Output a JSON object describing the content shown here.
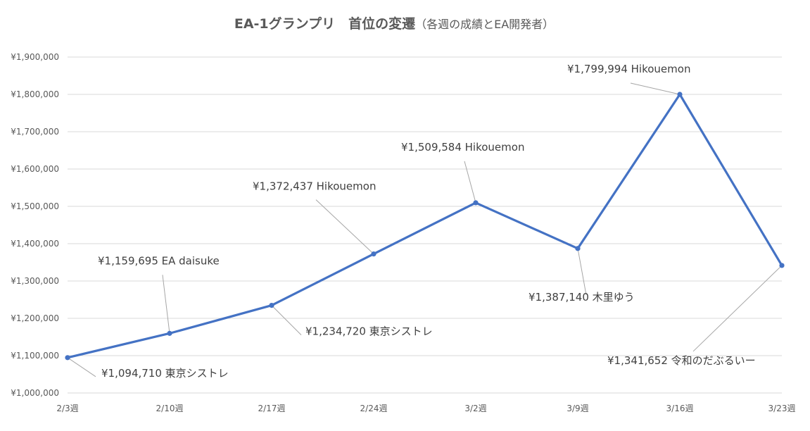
{
  "chart_data": {
    "type": "line",
    "title": "EA-1グランプリ　首位の変遷",
    "subtitle": "（各週の成績とEA開発者）",
    "categories": [
      "2/3週",
      "2/10週",
      "2/17週",
      "2/24週",
      "3/2週",
      "3/9週",
      "3/16週",
      "3/23週"
    ],
    "series": [
      {
        "values": [
          1094710,
          1159695,
          1234720,
          1372437,
          1509584,
          1387140,
          1799994,
          1341652
        ]
      }
    ],
    "data_labels": [
      {
        "value": "¥1,094,710",
        "name": "東京シストレ"
      },
      {
        "value": "¥1,159,695",
        "name": "EA daisuke"
      },
      {
        "value": "¥1,234,720",
        "name": "東京シストレ"
      },
      {
        "value": "¥1,372,437",
        "name": "Hikouemon"
      },
      {
        "value": "¥1,509,584",
        "name": "Hikouemon"
      },
      {
        "value": "¥1,387,140",
        "name": "木里ゆう"
      },
      {
        "value": "¥1,799,994",
        "name": "Hikouemon"
      },
      {
        "value": "¥1,341,652",
        "name": "令和のだぶるいー"
      }
    ],
    "ylim": [
      1000000,
      1900000
    ],
    "ytick_step": 100000,
    "yticks": [
      "¥1,000,000",
      "¥1,100,000",
      "¥1,200,000",
      "¥1,300,000",
      "¥1,400,000",
      "¥1,500,000",
      "¥1,600,000",
      "¥1,700,000",
      "¥1,800,000",
      "¥1,900,000"
    ],
    "grid": true,
    "line_color": "#4472C4",
    "grid_color": "#D9D9D9",
    "leader_color": "#A6A6A6"
  }
}
